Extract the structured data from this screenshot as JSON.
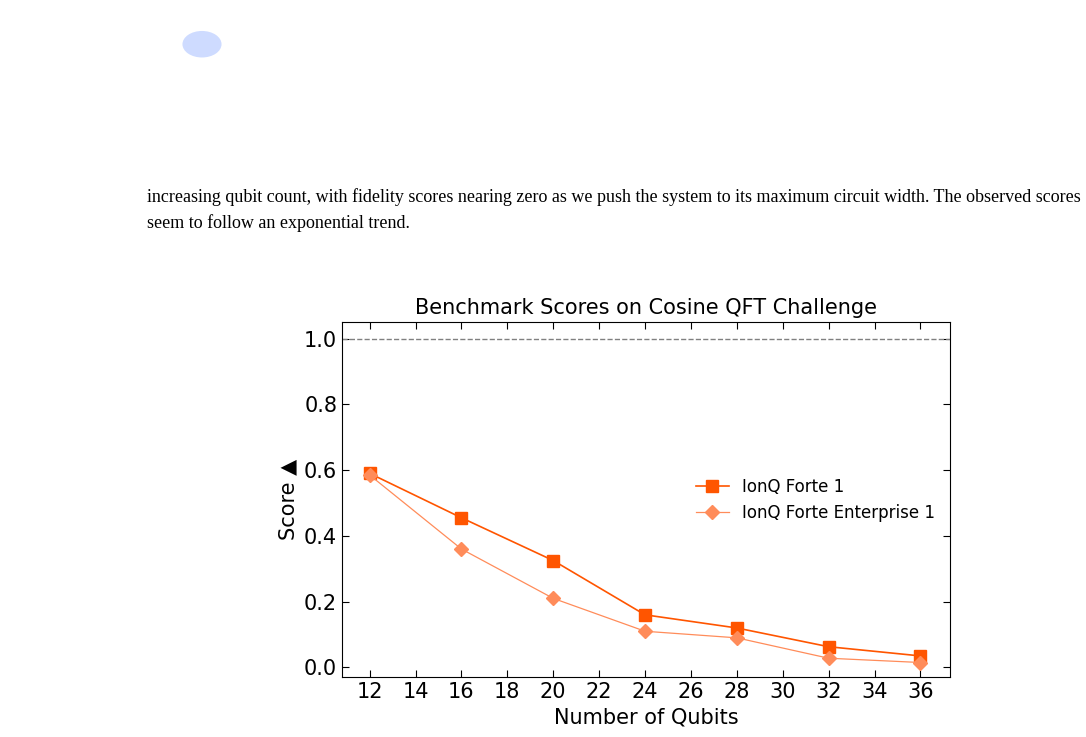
{
  "paragraph": "increasing qubit count, with fidelity scores nearing zero as we push the system to its maximum circuit width. The observed scores seem to follow an exponential trend.",
  "chart_data": {
    "type": "line",
    "title": "Benchmark Scores on Cosine QFT Challenge",
    "x_label": "Number of Qubits",
    "y_label": "Score ▲",
    "x": [
      12,
      16,
      20,
      24,
      28,
      32,
      36
    ],
    "series": [
      {
        "name": "IonQ Forte 1",
        "color": "#ff5500",
        "marker": "square",
        "line_style": "solid",
        "values": [
          0.59,
          0.455,
          0.325,
          0.16,
          0.12,
          0.063,
          0.035
        ]
      },
      {
        "name": "IonQ Forte Enterprise 1",
        "color": "#ff8c5a",
        "marker": "diamond",
        "line_style": "solid",
        "values": [
          0.585,
          0.36,
          0.21,
          0.11,
          0.09,
          0.028,
          0.015
        ]
      }
    ],
    "reference_line": 1.0,
    "xlim": [
      10.8,
      37.3
    ],
    "xticks": [
      12,
      14,
      16,
      18,
      20,
      22,
      24,
      26,
      28,
      30,
      32,
      34,
      36
    ],
    "ylim": [
      -0.03,
      1.05
    ],
    "yticks": [
      0.0,
      0.2,
      0.4,
      0.6,
      0.8,
      1.0
    ],
    "grid": false,
    "legend": "center right"
  }
}
